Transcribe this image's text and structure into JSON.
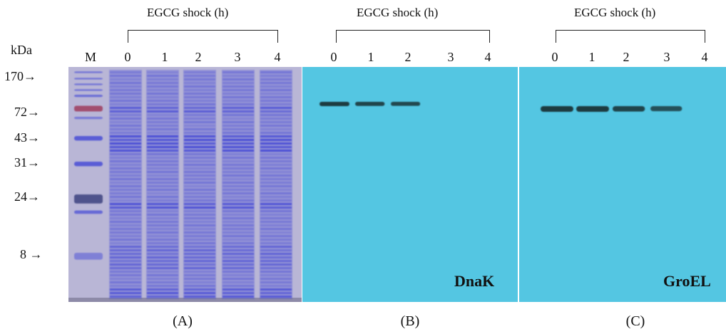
{
  "left_axis": {
    "unit": "kDa",
    "marker_lane_label": "M",
    "markers": [
      "170",
      "72",
      "43",
      "31",
      "24",
      "8"
    ],
    "arrow": "→"
  },
  "panels": [
    {
      "id": "A",
      "heading": "EGCG shock (h)",
      "lanes": [
        "0",
        "1",
        "2",
        "3",
        "4"
      ],
      "label": "(A)",
      "kind": "coomassie-gel"
    },
    {
      "id": "B",
      "heading": "EGCG shock (h)",
      "lanes": [
        "0",
        "1",
        "2",
        "3",
        "4"
      ],
      "label": "(B)",
      "kind": "western-blot",
      "target": "DnaK",
      "band_intensity": [
        1.0,
        0.85,
        0.8,
        0.0,
        0.0
      ]
    },
    {
      "id": "C",
      "heading": "EGCG shock (h)",
      "lanes": [
        "0",
        "1",
        "2",
        "3",
        "4"
      ],
      "label": "(C)",
      "kind": "western-blot",
      "target": "GroEL",
      "band_intensity": [
        1.0,
        1.0,
        0.85,
        0.65,
        0.0
      ]
    }
  ],
  "colors": {
    "gel_background": "#b9b6d6",
    "gel_band": "#3a3fd6",
    "blot_background": "#54c6e2",
    "blot_band": "#1b3a40",
    "marker_red": "#a14a6a"
  }
}
